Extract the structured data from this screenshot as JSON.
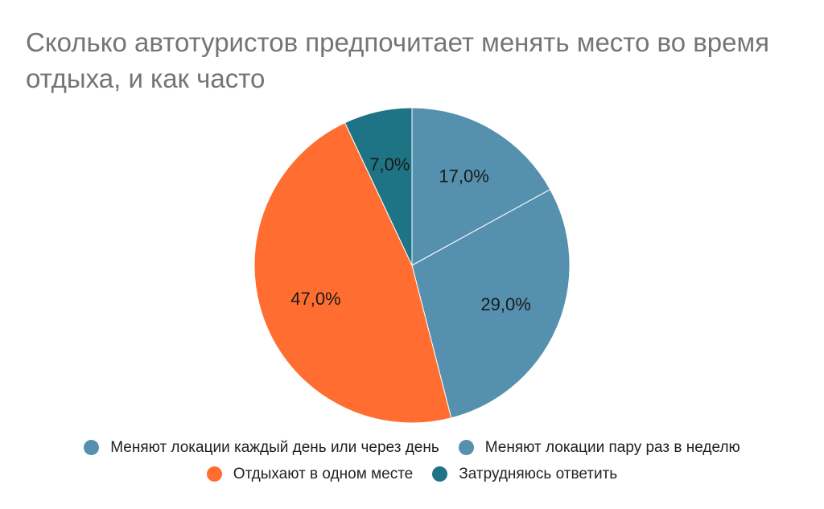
{
  "chart_data": {
    "type": "pie",
    "title": "Сколько автотуристов предпочитает менять место во время отдыха, и как часто",
    "start_angle_deg": 0,
    "direction": "clockwise",
    "legend_position": "bottom",
    "slices": [
      {
        "label": "Меняют локации каждый день или через день",
        "value": 17.0,
        "display": "17,0%",
        "color": "#5591AF"
      },
      {
        "label": "Меняют локации пару раз в неделю",
        "value": 29.0,
        "display": "29,0%",
        "color": "#5591AF"
      },
      {
        "label": "Отдыхают в одном месте",
        "value": 47.0,
        "display": "47,0%",
        "color": "#FF6D31"
      },
      {
        "label": "Затрудняюсь ответить",
        "value": 7.0,
        "display": "7,0%",
        "color": "#1E7384"
      }
    ]
  }
}
